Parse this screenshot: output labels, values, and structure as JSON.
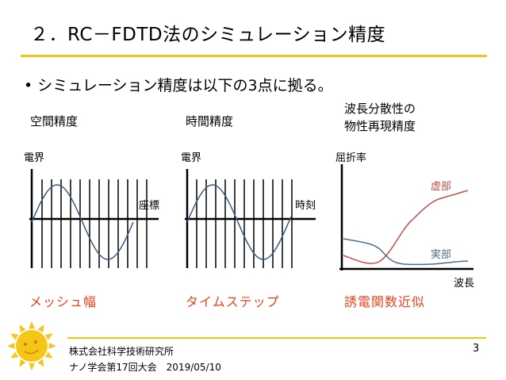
{
  "title": "２．RC－FDTD法のシミュレーション精度",
  "bullet": "• シミュレーション精度は以下の3点に拠る。",
  "panels": [
    {
      "heading": "空間精度",
      "ylabel": "電界",
      "xlabel": "座標",
      "caption": "メッシュ幅"
    },
    {
      "heading": "時間精度",
      "ylabel": "電界",
      "xlabel": "時刻",
      "caption": "タイムステップ"
    },
    {
      "heading_line1": "波長分散性の",
      "heading_line2": "物性再現精度",
      "ylabel": "屈折率",
      "xlabel": "波長",
      "caption": "誘電関数近似",
      "imag_label": "虚部",
      "real_label": "実部"
    }
  ],
  "footer": {
    "line1": "株式会社科学技術研究所",
    "line2": "ナノ学会第17回大会　2019/05/10"
  },
  "page_number": "3",
  "colors": {
    "accent": "#f3c21b",
    "caption_red": "#e8431f",
    "imag_curve": "#c0504d",
    "real_curve": "#4f6d8f",
    "wave": "#3d5a80"
  },
  "icons": {
    "logo": "sun-face-icon"
  }
}
